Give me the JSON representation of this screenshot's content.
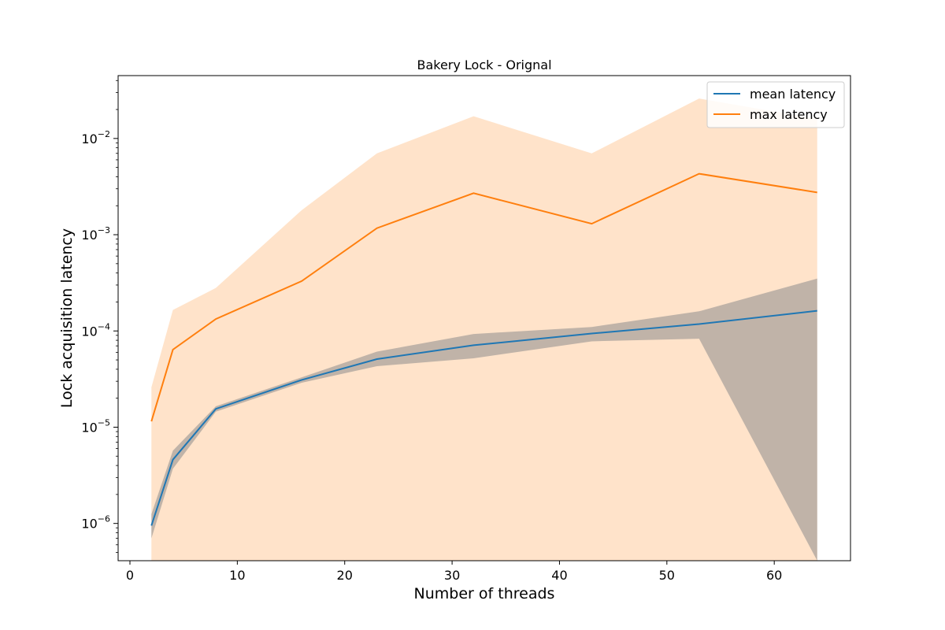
{
  "chart_data": {
    "type": "line",
    "title": "Bakery Lock - Orignal",
    "xlabel": "Number of threads",
    "ylabel": "Lock acquisition latency",
    "xlim": [
      -1.1,
      67.1
    ],
    "ylim": [
      4.1e-07,
      0.045
    ],
    "yscale": "log",
    "grid": false,
    "legend_position": "top-right",
    "x": [
      2,
      4,
      8,
      16,
      23,
      32,
      43,
      53,
      64
    ],
    "series": [
      {
        "name": "mean latency",
        "color": "#1f77b4",
        "band_color": "#8c8c8c",
        "values": [
          9.5e-07,
          4.6e-06,
          1.55e-05,
          3.1e-05,
          5.1e-05,
          7.1e-05,
          9.4e-05,
          0.000118,
          0.000162
        ],
        "band_upper": [
          1.25e-06,
          5.7e-06,
          1.65e-05,
          3.3e-05,
          6.1e-05,
          9.3e-05,
          0.00011,
          0.00016,
          0.00035
        ],
        "band_lower": [
          7e-07,
          3.7e-06,
          1.45e-05,
          2.9e-05,
          4.3e-05,
          5.2e-05,
          7.8e-05,
          8.3e-05,
          4.1e-07
        ]
      },
      {
        "name": "max latency",
        "color": "#ff7f0e",
        "band_color": "#ffd9b8",
        "values": [
          1.15e-05,
          6.4e-05,
          0.000133,
          0.00033,
          0.00117,
          0.0027,
          0.0013,
          0.0043,
          0.00275
        ],
        "band_upper": [
          2.6e-05,
          0.000165,
          0.00028,
          0.0018,
          0.007,
          0.017,
          0.007,
          0.026,
          0.016
        ],
        "band_lower": [
          4.1e-07,
          4.1e-07,
          4.1e-07,
          4.1e-07,
          4.1e-07,
          4.1e-07,
          4.1e-07,
          4.1e-07,
          4.1e-07
        ]
      }
    ],
    "x_ticks": [
      0,
      10,
      20,
      30,
      40,
      50,
      60
    ],
    "x_tick_labels": [
      "0",
      "10",
      "20",
      "30",
      "40",
      "50",
      "60"
    ],
    "y_major_ticks": [
      {
        "value": 1e-06,
        "base": "10",
        "exp": "−6"
      },
      {
        "value": 1e-05,
        "base": "10",
        "exp": "−5"
      },
      {
        "value": 0.0001,
        "base": "10",
        "exp": "−4"
      },
      {
        "value": 0.001,
        "base": "10",
        "exp": "−3"
      },
      {
        "value": 0.01,
        "base": "10",
        "exp": "−2"
      }
    ]
  }
}
